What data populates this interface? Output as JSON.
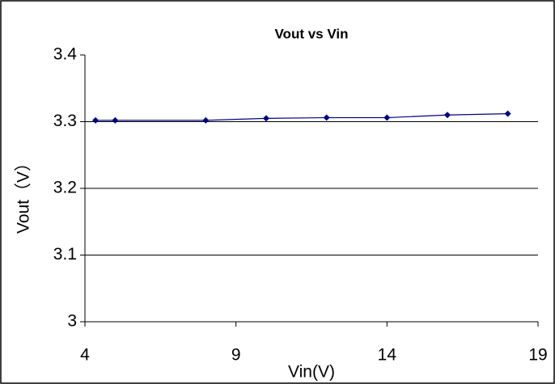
{
  "chart_data": {
    "type": "line",
    "title": "Vout vs Vin",
    "x_label": "Vin(V)",
    "y_label": "Vout（V）",
    "x": [
      4.35,
      5,
      8,
      10,
      12,
      14,
      16,
      18
    ],
    "series": [
      {
        "name": "Vout",
        "color": "#000080",
        "values": [
          3.302,
          3.302,
          3.302,
          3.305,
          3.306,
          3.306,
          3.31,
          3.312
        ]
      }
    ],
    "xlim": [
      4,
      19
    ],
    "xticks": [
      4,
      9,
      14,
      19
    ],
    "ylim": [
      3,
      3.4
    ],
    "yticks": [
      3,
      3.1,
      3.2,
      3.3,
      3.4
    ],
    "grid": true,
    "legend": false
  }
}
